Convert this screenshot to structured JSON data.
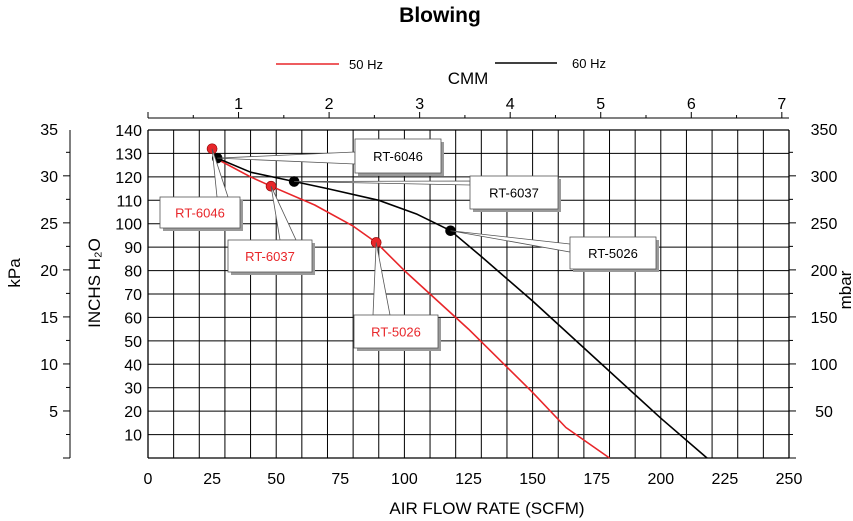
{
  "chart_data": {
    "type": "line",
    "title": "Blowing",
    "xlabel": "AIR FLOW RATE (SCFM)",
    "ylabel": "INCHS H₂O",
    "top_axis_label": "CMM",
    "left_outer_label": "kPa",
    "right_axis_label": "mbar",
    "xlim": [
      0,
      250
    ],
    "ylim": [
      0,
      140
    ],
    "x_ticks": [
      "0",
      "25",
      "50",
      "75",
      "100",
      "125",
      "150",
      "175",
      "200",
      "225",
      "250"
    ],
    "y_ticks": [
      "10",
      "20",
      "30",
      "40",
      "50",
      "60",
      "70",
      "80",
      "90",
      "100",
      "110",
      "120",
      "130",
      "140"
    ],
    "top_ticks": [
      "1",
      "2",
      "3",
      "4",
      "5",
      "6",
      "7"
    ],
    "kpa_ticks": [
      "5",
      "10",
      "15",
      "20",
      "25",
      "30",
      "35"
    ],
    "mbar_ticks": [
      "50",
      "100",
      "150",
      "200",
      "250",
      "300",
      "350"
    ],
    "grid": true,
    "legend_position": "top",
    "series": [
      {
        "name": "50 Hz",
        "color": "#e8262a",
        "points": [
          [
            25,
            132
          ],
          [
            28,
            127
          ],
          [
            40,
            120
          ],
          [
            48,
            116
          ],
          [
            65,
            108
          ],
          [
            80,
            99
          ],
          [
            89,
            92
          ],
          [
            100,
            80
          ],
          [
            125,
            55
          ],
          [
            150,
            28
          ],
          [
            163,
            13
          ],
          [
            180,
            0
          ]
        ],
        "markers": [
          [
            25,
            132
          ],
          [
            48,
            116
          ],
          [
            89,
            92
          ]
        ]
      },
      {
        "name": "60 Hz",
        "color": "#000000",
        "points": [
          [
            27,
            128
          ],
          [
            40,
            122
          ],
          [
            57,
            118
          ],
          [
            70,
            115
          ],
          [
            90,
            110
          ],
          [
            105,
            104
          ],
          [
            118,
            97
          ],
          [
            130,
            86
          ],
          [
            150,
            67
          ],
          [
            175,
            42
          ],
          [
            200,
            17
          ],
          [
            218,
            0
          ]
        ],
        "markers": [
          [
            27,
            128
          ],
          [
            57,
            118
          ],
          [
            118,
            97
          ]
        ]
      }
    ],
    "annotations": [
      {
        "text": "RT-6046",
        "color": "#e8262a"
      },
      {
        "text": "RT-6037",
        "color": "#e8262a"
      },
      {
        "text": "RT-5026",
        "color": "#e8262a"
      },
      {
        "text": "RT-6046",
        "color": "#000000"
      },
      {
        "text": "RT-6037",
        "color": "#000000"
      },
      {
        "text": "RT-5026",
        "color": "#000000"
      }
    ]
  }
}
